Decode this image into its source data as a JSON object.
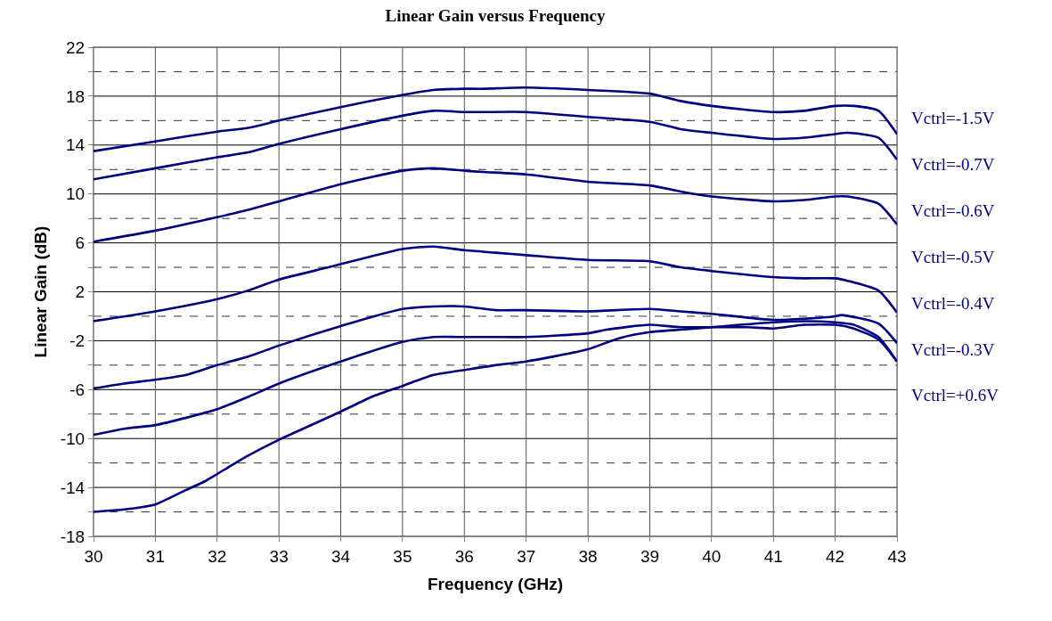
{
  "chart_data": {
    "type": "line",
    "title": "Linear Gain versus Frequency",
    "xlabel": "Frequency (GHz)",
    "ylabel": "Linear Gain (dB)",
    "xlim": [
      30,
      43
    ],
    "xticks": [
      30,
      31,
      32,
      33,
      34,
      35,
      36,
      37,
      38,
      39,
      40,
      41,
      42,
      43
    ],
    "ylim": [
      -18,
      22
    ],
    "yticks": [
      -18,
      {
        "value": -16,
        "label": null
      },
      -14,
      {
        "value": -12,
        "label": null
      },
      -10,
      {
        "value": -8,
        "label": null
      },
      -6,
      {
        "value": -4,
        "label": null
      },
      -2,
      {
        "value": 0,
        "label": null
      },
      2,
      {
        "value": 4,
        "label": null
      },
      6,
      {
        "value": 8,
        "label": null
      },
      10,
      {
        "value": 12,
        "label": null
      },
      14,
      {
        "value": 16,
        "label": null
      },
      18,
      {
        "value": 20,
        "label": null
      },
      22
    ],
    "grid": true,
    "legend": false,
    "marker": "none",
    "line_style": "solid",
    "series": [
      {
        "name": "Vctrl=-1.5V",
        "color": "#000080",
        "x": [
          30,
          31,
          32,
          32.5,
          33,
          34,
          35,
          35.5,
          36,
          36.3,
          37,
          38,
          39,
          39.5,
          40,
          41,
          41.5,
          42,
          42.3,
          42.7,
          43
        ],
        "values": [
          13.5,
          14.3,
          15.1,
          15.4,
          16.0,
          17.1,
          18.1,
          18.5,
          18.6,
          18.6,
          18.7,
          18.5,
          18.2,
          17.6,
          17.2,
          16.7,
          16.8,
          17.2,
          17.2,
          16.8,
          14.9
        ]
      },
      {
        "name": "Vctrl=-0.7V",
        "color": "#000080",
        "x": [
          30,
          31,
          32,
          32.5,
          33,
          34,
          35,
          35.5,
          36,
          36.3,
          37,
          38,
          39,
          39.5,
          40,
          41,
          41.5,
          42,
          42.2,
          42.7,
          43
        ],
        "values": [
          11.2,
          12.1,
          13.0,
          13.4,
          14.1,
          15.3,
          16.4,
          16.8,
          16.7,
          16.7,
          16.7,
          16.3,
          15.9,
          15.3,
          15.0,
          14.5,
          14.6,
          14.9,
          15.0,
          14.6,
          12.8
        ]
      },
      {
        "name": "Vctrl=-0.6V",
        "color": "#000080",
        "x": [
          30,
          31,
          32,
          32.5,
          33,
          34,
          35,
          35.5,
          36,
          36.3,
          37,
          38,
          39,
          39.5,
          40,
          41,
          41.5,
          42,
          42.2,
          42.7,
          43
        ],
        "values": [
          6.1,
          7.0,
          8.1,
          8.7,
          9.4,
          10.8,
          11.9,
          12.1,
          11.9,
          11.8,
          11.6,
          11.0,
          10.7,
          10.2,
          9.8,
          9.4,
          9.5,
          9.8,
          9.8,
          9.2,
          7.5
        ]
      },
      {
        "name": "Vctrl=-0.5V",
        "color": "#000080",
        "x": [
          30,
          31,
          32,
          32.5,
          33,
          33.8,
          35,
          35.5,
          36,
          36.5,
          37,
          38,
          39,
          39.5,
          40,
          41,
          41.5,
          42,
          42.2,
          42.7,
          43
        ],
        "values": [
          -0.4,
          0.4,
          1.4,
          2.1,
          3.0,
          4.0,
          5.5,
          5.7,
          5.4,
          5.2,
          5.0,
          4.6,
          4.5,
          4.0,
          3.7,
          3.2,
          3.1,
          3.1,
          2.9,
          2.1,
          0.3
        ]
      },
      {
        "name": "Vctrl=-0.4V",
        "color": "#000080",
        "x": [
          30,
          30.5,
          31,
          31.5,
          32,
          32.5,
          33,
          34,
          35,
          35.5,
          36,
          36.5,
          37,
          38,
          39,
          39.5,
          40,
          41,
          41.5,
          42,
          42.1,
          42.7,
          43
        ],
        "values": [
          -5.9,
          -5.5,
          -5.2,
          -4.8,
          -4.0,
          -3.3,
          -2.4,
          -0.8,
          0.6,
          0.8,
          0.8,
          0.5,
          0.5,
          0.4,
          0.6,
          0.4,
          0.2,
          -0.3,
          -0.2,
          0.0,
          0.1,
          -0.6,
          -2.2
        ]
      },
      {
        "name": "Vctrl=-0.3V",
        "color": "#000080",
        "x": [
          30,
          30.5,
          31,
          31.5,
          32,
          32.5,
          33,
          34,
          35,
          35.5,
          36,
          36.5,
          37,
          38,
          38.3,
          39,
          39.5,
          40,
          40.6,
          41,
          41.5,
          42,
          42.3,
          42.7,
          43
        ],
        "values": [
          -9.7,
          -9.2,
          -8.9,
          -8.3,
          -7.6,
          -6.6,
          -5.5,
          -3.7,
          -2.1,
          -1.7,
          -1.7,
          -1.7,
          -1.7,
          -1.4,
          -1.1,
          -0.7,
          -0.9,
          -0.9,
          -0.9,
          -1.0,
          -0.7,
          -0.7,
          -1.0,
          -1.9,
          -3.7
        ]
      },
      {
        "name": "Vctrl=+0.6V",
        "color": "#000080",
        "x": [
          30,
          30.5,
          30.8,
          31,
          31.5,
          31.8,
          32,
          32.5,
          33,
          34,
          34.5,
          35,
          35.5,
          36,
          36.5,
          37,
          38,
          38.5,
          39,
          39.5,
          40,
          41,
          41.5,
          42,
          42.3,
          42.7,
          43
        ],
        "values": [
          -16.0,
          -15.8,
          -15.6,
          -15.4,
          -14.2,
          -13.5,
          -12.9,
          -11.4,
          -10.1,
          -7.8,
          -6.6,
          -5.7,
          -4.8,
          -4.4,
          -4.0,
          -3.7,
          -2.7,
          -1.8,
          -1.3,
          -1.1,
          -0.9,
          -0.5,
          -0.4,
          -0.5,
          -0.7,
          -1.7,
          -3.7
        ]
      }
    ]
  }
}
